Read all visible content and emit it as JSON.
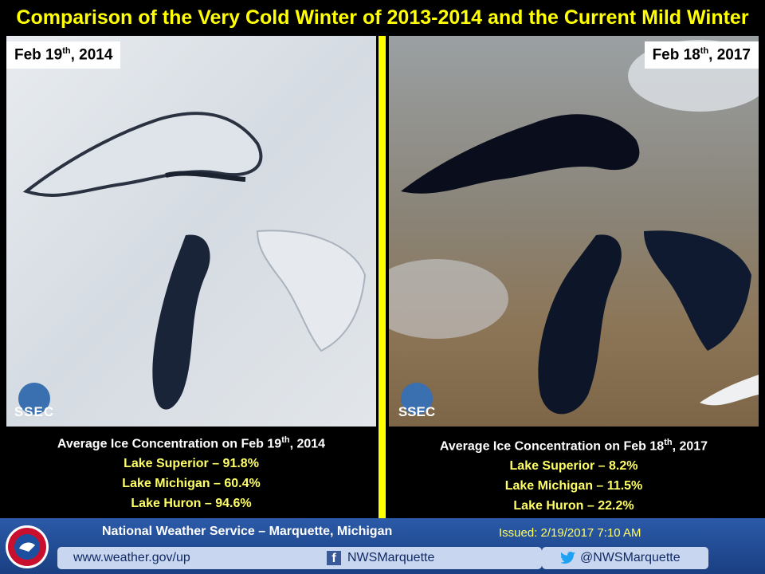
{
  "title": "Comparison of the Very Cold Winter of 2013-2014 and the Current Mild Winter",
  "panels": [
    {
      "date": {
        "pre": "Feb 19",
        "sup": "th",
        "post": ", 2014"
      },
      "logo": "SSEC",
      "heading": {
        "pre": "Average Ice Concentration  on Feb 19",
        "sup": "th",
        "post": ", 2014"
      },
      "lakes": [
        "Lake Superior – 91.8%",
        "Lake Michigan – 60.4%",
        "Lake Huron – 94.6%"
      ]
    },
    {
      "date": {
        "pre": "Feb 18",
        "sup": "th",
        "post": ", 2017"
      },
      "logo": "SSEC",
      "heading": {
        "pre": "Average Ice Concentration  on Feb 18",
        "sup": "th",
        "post": ", 2017"
      },
      "lakes": [
        "Lake Superior – 8.2%",
        "Lake Michigan – 11.5%",
        "Lake Huron – 22.2%"
      ]
    }
  ],
  "footer": {
    "office": "National Weather Service – Marquette, Michigan",
    "issued": "Issued: 2/19/2017 7:10 AM",
    "website": "www.weather.gov/up",
    "facebook": "NWSMarquette",
    "twitter": "@NWSMarquette"
  }
}
